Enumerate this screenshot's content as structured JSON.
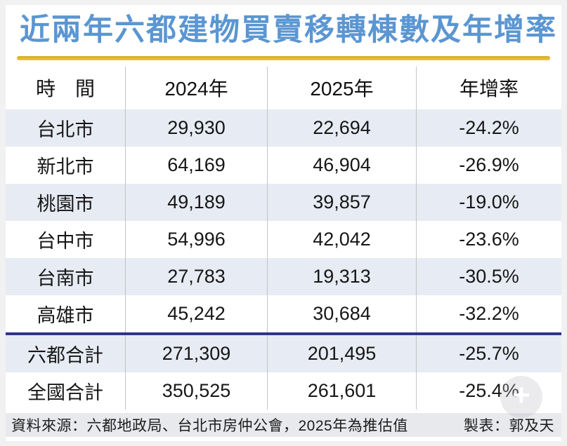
{
  "title": "近兩年六都建物買賣移轉棟數及年增率",
  "table": {
    "columns": [
      "時　間",
      "2024年",
      "2025年",
      "年增率"
    ],
    "rows": [
      {
        "label": "台北市",
        "y2024": "29,930",
        "y2025": "22,694",
        "yoy": "-24.2%"
      },
      {
        "label": "新北市",
        "y2024": "64,169",
        "y2025": "46,904",
        "yoy": "-26.9%"
      },
      {
        "label": "桃園市",
        "y2024": "49,189",
        "y2025": "39,857",
        "yoy": "-19.0%"
      },
      {
        "label": "台中市",
        "y2024": "54,996",
        "y2025": "42,042",
        "yoy": "-23.6%"
      },
      {
        "label": "台南市",
        "y2024": "27,783",
        "y2025": "19,313",
        "yoy": "-30.5%"
      },
      {
        "label": "高雄市",
        "y2024": "45,242",
        "y2025": "30,684",
        "yoy": "-32.2%"
      }
    ],
    "summary_rows": [
      {
        "label": "六都合計",
        "y2024": "271,309",
        "y2025": "201,495",
        "yoy": "-25.7%"
      },
      {
        "label": "全國合計",
        "y2024": "350,525",
        "y2025": "261,601",
        "yoy": "-25.4%"
      }
    ]
  },
  "footer": {
    "source": "資料來源：六都地政局、台北市房仲公會，2025年為推估值",
    "credit": "製表：郭及天"
  },
  "watermark": {
    "glyph": "+"
  },
  "colors": {
    "title_blue": "#5b96d2",
    "gold_rule": "#deb92b",
    "row_highlight": "#e7ebf3",
    "summary_divider_navy": "#32328e",
    "column_divider_gray": "#c3c3c3",
    "footer_bg": "#e7e9ec"
  },
  "chart_data": {
    "type": "table",
    "title": "近兩年六都建物買賣移轉棟數及年增率",
    "columns": [
      "時間",
      "2024年",
      "2025年",
      "年增率"
    ],
    "rows": [
      [
        "台北市",
        29930,
        22694,
        "-24.2%"
      ],
      [
        "新北市",
        64169,
        46904,
        "-26.9%"
      ],
      [
        "桃園市",
        49189,
        39857,
        "-19.0%"
      ],
      [
        "台中市",
        54996,
        42042,
        "-23.6%"
      ],
      [
        "台南市",
        27783,
        19313,
        "-30.5%"
      ],
      [
        "高雄市",
        45242,
        30684,
        "-32.2%"
      ],
      [
        "六都合計",
        271309,
        201495,
        "-25.7%"
      ],
      [
        "全國合計",
        350525,
        261601,
        "-25.4%"
      ]
    ],
    "notes": "資料來源：六都地政局、台北市房仲公會，2025年為推估值"
  }
}
